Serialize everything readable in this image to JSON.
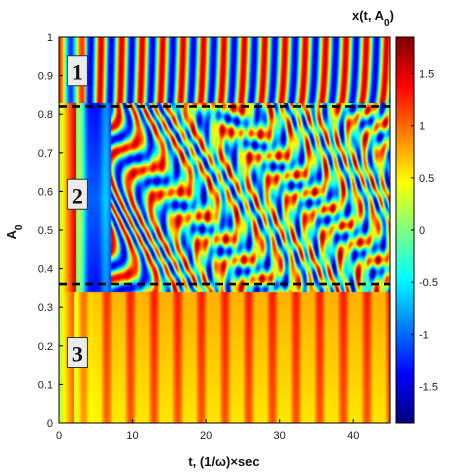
{
  "chart_data": {
    "type": "heatmap",
    "title": "x(t, A_0)",
    "xlabel": "t,  (1/ω)×sec",
    "ylabel": "A_0",
    "xlim": [
      0,
      45
    ],
    "ylim": [
      0,
      1
    ],
    "x_ticks": [
      0,
      10,
      20,
      30,
      40
    ],
    "y_ticks": [
      0,
      0.1,
      0.2,
      0.3,
      0.4,
      0.5,
      0.6,
      0.7,
      0.8,
      0.9,
      1
    ],
    "colorbar": {
      "label": "x(t, A_0)",
      "range": [
        -1.85,
        1.85
      ],
      "ticks": [
        -1.5,
        -1,
        -0.5,
        0,
        0.5,
        1,
        1.5
      ],
      "colormap": "jet"
    },
    "thresholds": [
      {
        "a0": 0.82,
        "style": "dashed"
      },
      {
        "a0": 0.36,
        "style": "dashed"
      }
    ],
    "regions": [
      {
        "label": "1",
        "a0": 0.91,
        "t": 2.5
      },
      {
        "label": "2",
        "a0": 0.59,
        "t": 2.5
      },
      {
        "label": "3",
        "a0": 0.18,
        "t": 2.5
      }
    ]
  }
}
